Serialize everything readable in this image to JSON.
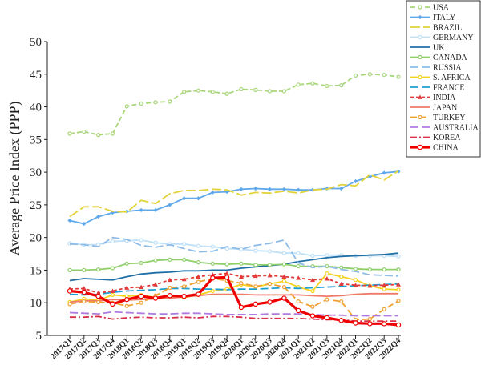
{
  "chart_data": {
    "type": "line",
    "title": "",
    "xlabel": "",
    "ylabel": "Average Price Index (PPP)",
    "ylim": [
      5,
      50
    ],
    "yticks": [
      5,
      10,
      15,
      20,
      25,
      30,
      35,
      40,
      45,
      50
    ],
    "grid": false,
    "legend_position": "top-right",
    "x": [
      "2017Q1",
      "2017Q2",
      "2017Q3",
      "2017Q4",
      "2018Q1",
      "2018Q2",
      "2018Q3",
      "2018Q4",
      "2019Q1",
      "2019Q2",
      "2019Q3",
      "2019Q4",
      "2020Q1",
      "2020Q2",
      "2020Q3",
      "2020Q4",
      "2021Q1",
      "2021Q2",
      "2021Q3",
      "2021Q4",
      "2022Q1",
      "2022Q2",
      "2022Q3",
      "2022Q4"
    ],
    "series": [
      {
        "name": "USA",
        "color": "#a8d67a",
        "dash": "6,3",
        "marker": "circle",
        "values": [
          35.9,
          36.2,
          35.7,
          35.9,
          40.1,
          40.5,
          40.7,
          40.8,
          42.3,
          42.5,
          42.3,
          42.0,
          42.7,
          42.6,
          42.4,
          42.4,
          43.4,
          43.6,
          43.2,
          43.3,
          44.8,
          45.0,
          44.9,
          44.6
        ]
      },
      {
        "name": "ITALY",
        "color": "#5fa8ea",
        "dash": "",
        "marker": "diamond",
        "values": [
          22.6,
          22.1,
          23.2,
          23.8,
          24.0,
          24.2,
          24.2,
          25.0,
          26.0,
          26.0,
          26.9,
          27.0,
          27.4,
          27.5,
          27.4,
          27.4,
          27.3,
          27.3,
          27.5,
          27.5,
          28.6,
          29.3,
          29.9,
          30.1
        ]
      },
      {
        "name": "BRAZIL",
        "color": "#e3d33a",
        "dash": "12,4",
        "marker": "none",
        "values": [
          23.2,
          24.7,
          24.7,
          24.0,
          23.9,
          25.7,
          25.2,
          26.7,
          27.2,
          27.2,
          27.4,
          27.3,
          26.5,
          26.9,
          26.8,
          27.1,
          26.8,
          27.3,
          27.4,
          28.1,
          27.9,
          29.6,
          28.8,
          30.2
        ]
      },
      {
        "name": "GERMANY",
        "color": "#bfe0f7",
        "dash": "",
        "marker": "circle",
        "values": [
          19.1,
          18.9,
          18.9,
          19.4,
          19.5,
          19.6,
          19.2,
          19.0,
          19.0,
          18.7,
          18.6,
          18.3,
          18.2,
          18.0,
          17.9,
          17.6,
          17.6,
          17.2,
          17.3,
          17.3,
          17.2,
          17.2,
          17.2,
          17.1
        ]
      },
      {
        "name": "UK",
        "color": "#1f6fa6",
        "dash": "",
        "marker": "none",
        "values": [
          13.4,
          13.7,
          13.6,
          13.5,
          14.0,
          14.4,
          14.6,
          14.7,
          14.9,
          14.9,
          15.0,
          15.0,
          15.3,
          15.5,
          15.7,
          15.9,
          16.3,
          16.6,
          16.9,
          17.1,
          17.2,
          17.3,
          17.4,
          17.6
        ]
      },
      {
        "name": "CANADA",
        "color": "#8fcf6a",
        "dash": "",
        "marker": "circle",
        "values": [
          15.0,
          15.0,
          15.1,
          15.3,
          16.0,
          16.1,
          16.5,
          16.6,
          16.6,
          16.2,
          16.0,
          15.9,
          16.0,
          15.8,
          15.8,
          15.9,
          15.6,
          15.6,
          15.6,
          15.4,
          15.2,
          15.1,
          15.1,
          15.1
        ]
      },
      {
        "name": "RUSSIA",
        "color": "#8fbce6",
        "dash": "10,4",
        "marker": "none",
        "values": [
          19.0,
          18.9,
          18.6,
          20.0,
          19.7,
          18.8,
          18.5,
          18.9,
          18.3,
          17.8,
          17.9,
          18.6,
          18.2,
          18.8,
          19.1,
          19.6,
          16.1,
          15.4,
          15.6,
          15.1,
          14.8,
          14.3,
          14.2,
          14.1
        ]
      },
      {
        "name": "S. AFRICA",
        "color": "#f5d21e",
        "dash": "",
        "marker": "circle",
        "values": [
          10.1,
          10.6,
          10.4,
          11.2,
          11.0,
          11.2,
          10.8,
          11.0,
          10.8,
          11.2,
          11.8,
          12.1,
          12.8,
          12.4,
          12.9,
          13.3,
          12.4,
          11.8,
          14.5,
          14.0,
          13.5,
          12.6,
          12.1,
          12.0
        ]
      },
      {
        "name": "FRANCE",
        "color": "#1f9ed0",
        "dash": "10,4",
        "marker": "none",
        "values": [
          11.3,
          11.2,
          11.3,
          11.6,
          11.8,
          11.9,
          12.0,
          12.2,
          12.2,
          12.1,
          12.1,
          12.0,
          12.1,
          12.1,
          12.2,
          12.3,
          12.2,
          12.3,
          12.4,
          12.5,
          12.6,
          12.7,
          12.8,
          12.9
        ]
      },
      {
        "name": "INDIA",
        "color": "#e23b3b",
        "dash": "4,3",
        "marker": "triangle",
        "values": [
          12.1,
          12.2,
          11.5,
          11.8,
          12.3,
          12.4,
          12.8,
          13.5,
          13.6,
          14.0,
          14.3,
          14.5,
          14.0,
          14.1,
          14.2,
          14.0,
          13.8,
          13.5,
          13.7,
          12.9,
          12.7,
          12.6,
          12.7,
          12.8
        ]
      },
      {
        "name": "JAPAN",
        "color": "#f07a6a",
        "dash": "",
        "marker": "none",
        "values": [
          10.1,
          10.3,
          10.3,
          10.5,
          10.4,
          10.5,
          10.6,
          10.7,
          10.9,
          11.1,
          11.3,
          11.3,
          11.3,
          11.2,
          11.2,
          11.2,
          11.2,
          11.1,
          11.0,
          11.1,
          11.3,
          11.4,
          11.4,
          11.4
        ]
      },
      {
        "name": "TURKEY",
        "color": "#f0a030",
        "dash": "8,4",
        "marker": "circle",
        "values": [
          9.8,
          10.2,
          10.1,
          10.0,
          9.5,
          10.0,
          11.1,
          12.3,
          12.5,
          13.2,
          13.7,
          13.4,
          13.0,
          12.5,
          12.9,
          12.4,
          10.2,
          9.4,
          10.5,
          10.2,
          7.4,
          7.5,
          9.0,
          10.3
        ]
      },
      {
        "name": "AUSTRALIA",
        "color": "#b07be0",
        "dash": "10,4",
        "marker": "none",
        "values": [
          8.5,
          8.4,
          8.3,
          8.6,
          8.5,
          8.4,
          8.3,
          8.3,
          8.4,
          8.4,
          8.3,
          8.2,
          8.2,
          8.2,
          8.3,
          8.3,
          8.3,
          8.2,
          8.1,
          8.1,
          8.0,
          8.0,
          8.0,
          8.0
        ]
      },
      {
        "name": "KOREA",
        "color": "#d8304a",
        "dash": "8,3,2,3",
        "marker": "none",
        "values": [
          7.8,
          7.8,
          7.9,
          7.5,
          7.7,
          7.8,
          7.7,
          7.7,
          7.8,
          7.7,
          7.9,
          7.9,
          7.8,
          7.6,
          7.6,
          7.6,
          7.6,
          7.5,
          7.4,
          7.4,
          7.2,
          7.2,
          7.2,
          7.2
        ]
      },
      {
        "name": "CHINA",
        "color": "#ee0000",
        "dash": "",
        "marker": "circle",
        "bold": true,
        "values": [
          11.8,
          11.6,
          11.0,
          9.8,
          10.5,
          11.0,
          10.7,
          11.1,
          11.0,
          11.3,
          13.8,
          13.9,
          9.3,
          9.8,
          10.1,
          10.7,
          8.8,
          8.0,
          7.7,
          7.3,
          6.9,
          6.8,
          6.8,
          6.6
        ]
      }
    ]
  }
}
